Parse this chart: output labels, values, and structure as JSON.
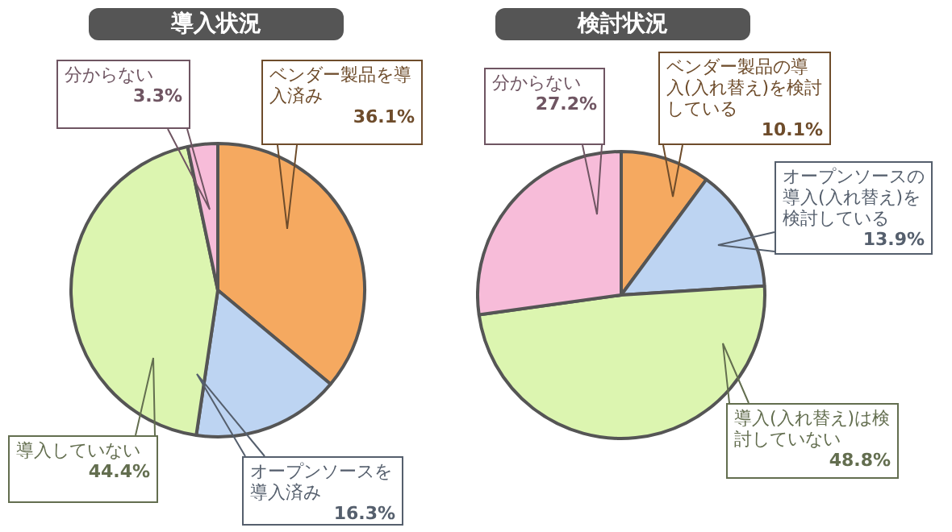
{
  "chart_data": [
    {
      "type": "pie",
      "title": "導入状況",
      "categories": [
        "ベンダー製品を導入済み",
        "オープンソースを導入済み",
        "導入していない",
        "分からない"
      ],
      "values": [
        36.1,
        16.3,
        44.4,
        3.3
      ],
      "colors": [
        "#f5a960",
        "#bdd4f2",
        "#dcf5b0",
        "#f7bcd9"
      ],
      "value_labels": [
        "36.1%",
        "16.3%",
        "44.4%",
        "3.3%"
      ]
    },
    {
      "type": "pie",
      "title": "検討状況",
      "categories": [
        "ベンダー製品の導入(入れ替え)を検討している",
        "オープンソースの導入(入れ替え)を検討している",
        "導入(入れ替え)は検討していない",
        "分からない"
      ],
      "values": [
        10.1,
        13.9,
        48.8,
        27.2
      ],
      "colors": [
        "#f5a960",
        "#bdd4f2",
        "#dcf5b0",
        "#f7bcd9"
      ],
      "value_labels": [
        "10.1%",
        "13.9%",
        "48.8%",
        "27.2%"
      ]
    }
  ]
}
